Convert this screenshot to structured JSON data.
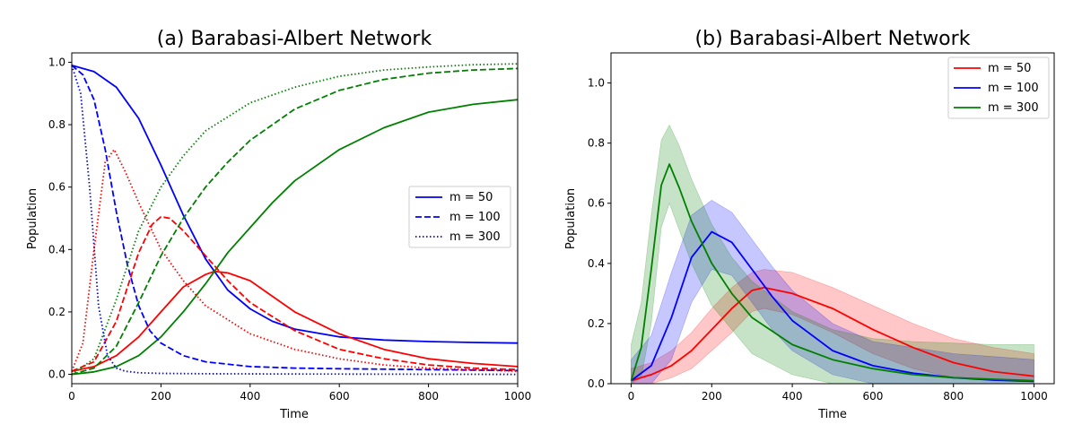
{
  "chart_data": [
    {
      "type": "line",
      "title": "(a) Barabasi-Albert Network",
      "xlabel": "Time",
      "ylabel": "Population",
      "xlim": [
        0,
        1000
      ],
      "ylim": [
        -0.03,
        1.03
      ],
      "xticks": [
        0,
        200,
        400,
        600,
        800,
        1000
      ],
      "yticks": [
        0.0,
        0.2,
        0.4,
        0.6,
        0.8,
        1.0
      ],
      "legend": {
        "placement": "center-right",
        "entries": [
          {
            "label": "m = 50",
            "dash": "solid"
          },
          {
            "label": "m = 100",
            "dash": "dashed"
          },
          {
            "label": "m = 300",
            "dash": "dotted"
          }
        ]
      },
      "series": [
        {
          "m": 50,
          "group": "blue",
          "color": "#0000ff",
          "dash": "solid",
          "x": [
            0,
            50,
            100,
            150,
            200,
            250,
            300,
            350,
            400,
            450,
            500,
            600,
            700,
            800,
            900,
            1000
          ],
          "y": [
            0.99,
            0.97,
            0.92,
            0.82,
            0.67,
            0.51,
            0.37,
            0.27,
            0.21,
            0.17,
            0.145,
            0.12,
            0.11,
            0.105,
            0.102,
            0.1
          ]
        },
        {
          "m": 50,
          "group": "red",
          "color": "#ff0000",
          "dash": "solid",
          "x": [
            0,
            50,
            100,
            150,
            200,
            250,
            300,
            320,
            350,
            400,
            450,
            500,
            600,
            700,
            800,
            900,
            1000
          ],
          "y": [
            0.01,
            0.025,
            0.06,
            0.12,
            0.2,
            0.28,
            0.32,
            0.33,
            0.325,
            0.3,
            0.25,
            0.2,
            0.13,
            0.08,
            0.05,
            0.035,
            0.025
          ]
        },
        {
          "m": 50,
          "group": "green",
          "color": "#008000",
          "dash": "solid",
          "x": [
            0,
            50,
            100,
            150,
            200,
            250,
            300,
            350,
            400,
            450,
            500,
            600,
            700,
            800,
            900,
            1000
          ],
          "y": [
            0.0,
            0.008,
            0.025,
            0.06,
            0.12,
            0.2,
            0.29,
            0.39,
            0.47,
            0.55,
            0.62,
            0.72,
            0.79,
            0.84,
            0.865,
            0.88
          ]
        },
        {
          "m": 100,
          "group": "blue",
          "color": "#0000ff",
          "dash": "dashed",
          "x": [
            0,
            25,
            50,
            75,
            100,
            125,
            150,
            175,
            200,
            250,
            300,
            400,
            500,
            600,
            800,
            1000
          ],
          "y": [
            0.99,
            0.96,
            0.88,
            0.72,
            0.52,
            0.35,
            0.22,
            0.14,
            0.1,
            0.06,
            0.04,
            0.025,
            0.02,
            0.018,
            0.015,
            0.012
          ]
        },
        {
          "m": 100,
          "group": "red",
          "color": "#ff0000",
          "dash": "dashed",
          "x": [
            0,
            50,
            100,
            150,
            180,
            200,
            220,
            250,
            300,
            350,
            400,
            500,
            600,
            700,
            800,
            900,
            1000
          ],
          "y": [
            0.01,
            0.04,
            0.17,
            0.39,
            0.48,
            0.505,
            0.5,
            0.46,
            0.38,
            0.3,
            0.23,
            0.14,
            0.08,
            0.05,
            0.03,
            0.02,
            0.015
          ]
        },
        {
          "m": 100,
          "group": "green",
          "color": "#008000",
          "dash": "dashed",
          "x": [
            0,
            50,
            100,
            150,
            200,
            250,
            300,
            350,
            400,
            500,
            600,
            700,
            800,
            900,
            1000
          ],
          "y": [
            0.0,
            0.02,
            0.09,
            0.23,
            0.38,
            0.5,
            0.6,
            0.68,
            0.75,
            0.85,
            0.91,
            0.945,
            0.965,
            0.975,
            0.98
          ]
        },
        {
          "m": 300,
          "group": "blue",
          "color": "#0000ff",
          "dash": "dotted",
          "x": [
            0,
            20,
            40,
            60,
            80,
            100,
            120,
            150,
            200,
            300,
            500,
            1000
          ],
          "y": [
            0.99,
            0.9,
            0.6,
            0.22,
            0.06,
            0.02,
            0.01,
            0.005,
            0.003,
            0.002,
            0.001,
            0.0
          ]
        },
        {
          "m": 300,
          "group": "red",
          "color": "#ff0000",
          "dash": "dotted",
          "x": [
            0,
            25,
            50,
            75,
            95,
            120,
            150,
            200,
            250,
            300,
            400,
            500,
            600,
            700,
            800,
            1000
          ],
          "y": [
            0.01,
            0.1,
            0.4,
            0.68,
            0.72,
            0.65,
            0.55,
            0.4,
            0.3,
            0.22,
            0.13,
            0.08,
            0.05,
            0.03,
            0.02,
            0.01
          ]
        },
        {
          "m": 300,
          "group": "green",
          "color": "#008000",
          "dash": "dotted",
          "x": [
            0,
            50,
            100,
            150,
            200,
            250,
            300,
            400,
            500,
            600,
            700,
            800,
            900,
            1000
          ],
          "y": [
            0.0,
            0.05,
            0.24,
            0.46,
            0.6,
            0.7,
            0.78,
            0.87,
            0.92,
            0.955,
            0.975,
            0.985,
            0.992,
            0.995
          ]
        }
      ]
    },
    {
      "type": "area",
      "title": "(b) Barabasi-Albert Network",
      "xlabel": "Time",
      "ylabel": "Population",
      "xlim": [
        -50,
        1050
      ],
      "ylim": [
        0,
        1.1
      ],
      "xticks": [
        0,
        200,
        400,
        600,
        800,
        1000
      ],
      "yticks": [
        0.0,
        0.2,
        0.4,
        0.6,
        0.8,
        1.0
      ],
      "legend": {
        "placement": "top-right"
      },
      "series": [
        {
          "name": "m = 50",
          "color": "#ff0000",
          "x": [
            0,
            50,
            100,
            150,
            200,
            250,
            300,
            330,
            400,
            500,
            600,
            700,
            800,
            900,
            1000
          ],
          "y": [
            0.01,
            0.03,
            0.06,
            0.11,
            0.18,
            0.25,
            0.31,
            0.32,
            0.3,
            0.25,
            0.18,
            0.12,
            0.07,
            0.04,
            0.025
          ],
          "upper": [
            0.05,
            0.07,
            0.11,
            0.17,
            0.25,
            0.32,
            0.37,
            0.38,
            0.37,
            0.32,
            0.26,
            0.2,
            0.15,
            0.12,
            0.1
          ],
          "lower": [
            0.0,
            0.0,
            0.02,
            0.05,
            0.11,
            0.17,
            0.24,
            0.25,
            0.23,
            0.17,
            0.1,
            0.05,
            0.02,
            0.01,
            0.005
          ]
        },
        {
          "name": "m = 100",
          "color": "#0000ff",
          "x": [
            0,
            50,
            100,
            150,
            200,
            250,
            300,
            350,
            400,
            500,
            600,
            700,
            800,
            900,
            1000
          ],
          "y": [
            0.01,
            0.06,
            0.22,
            0.42,
            0.505,
            0.47,
            0.38,
            0.29,
            0.21,
            0.11,
            0.06,
            0.035,
            0.02,
            0.012,
            0.008
          ],
          "upper": [
            0.08,
            0.16,
            0.37,
            0.56,
            0.61,
            0.57,
            0.48,
            0.39,
            0.31,
            0.2,
            0.14,
            0.12,
            0.1,
            0.09,
            0.08
          ],
          "lower": [
            0.0,
            0.0,
            0.08,
            0.27,
            0.38,
            0.36,
            0.27,
            0.18,
            0.11,
            0.03,
            0.0,
            0.0,
            0.0,
            0.0,
            0.0
          ]
        },
        {
          "name": "m = 300",
          "color": "#008000",
          "x": [
            0,
            25,
            50,
            75,
            95,
            120,
            150,
            200,
            250,
            300,
            400,
            500,
            600,
            700,
            800,
            900,
            1000
          ],
          "y": [
            0.01,
            0.12,
            0.38,
            0.66,
            0.73,
            0.65,
            0.54,
            0.4,
            0.3,
            0.22,
            0.13,
            0.08,
            0.05,
            0.03,
            0.02,
            0.015,
            0.01
          ],
          "upper": [
            0.13,
            0.27,
            0.56,
            0.81,
            0.86,
            0.79,
            0.68,
            0.53,
            0.42,
            0.34,
            0.24,
            0.18,
            0.15,
            0.14,
            0.135,
            0.13,
            0.13
          ],
          "lower": [
            0.0,
            0.02,
            0.2,
            0.52,
            0.6,
            0.51,
            0.4,
            0.26,
            0.18,
            0.1,
            0.03,
            0.0,
            0.0,
            0.0,
            0.0,
            0.0,
            0.0
          ]
        }
      ]
    }
  ]
}
